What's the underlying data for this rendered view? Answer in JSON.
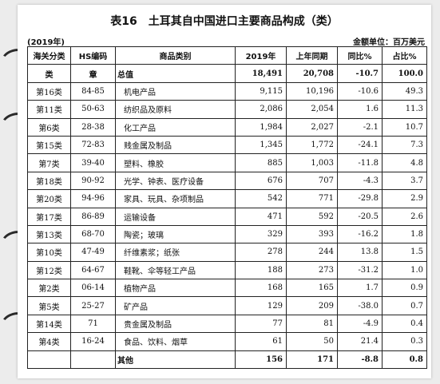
{
  "title": "表16　土耳其自中国进口主要商品构成（类）",
  "year_note": "(2019年)",
  "unit_note": "金额单位：百万美元",
  "headers": [
    "海关分类",
    "HS编码",
    "商品类别",
    "2019年",
    "上年同期",
    "同比%",
    "占比%"
  ],
  "rows": [
    {
      "cls": "类",
      "hs": "章",
      "name": "总值",
      "v2019": "18,491",
      "prev": "20,708",
      "yoy": "-10.7",
      "share": "100.0"
    },
    {
      "cls": "第16类",
      "hs": "84-85",
      "name": "机电产品",
      "v2019": "9,115",
      "prev": "10,196",
      "yoy": "-10.6",
      "share": "49.3"
    },
    {
      "cls": "第11类",
      "hs": "50-63",
      "name": "纺织品及原料",
      "v2019": "2,086",
      "prev": "2,054",
      "yoy": "1.6",
      "share": "11.3"
    },
    {
      "cls": "第6类",
      "hs": "28-38",
      "name": "化工产品",
      "v2019": "1,984",
      "prev": "2,027",
      "yoy": "-2.1",
      "share": "10.7"
    },
    {
      "cls": "第15类",
      "hs": "72-83",
      "name": "贱金属及制品",
      "v2019": "1,345",
      "prev": "1,772",
      "yoy": "-24.1",
      "share": "7.3"
    },
    {
      "cls": "第7类",
      "hs": "39-40",
      "name": "塑料、橡胶",
      "v2019": "885",
      "prev": "1,003",
      "yoy": "-11.8",
      "share": "4.8"
    },
    {
      "cls": "第18类",
      "hs": "90-92",
      "name": "光学、钟表、医疗设备",
      "v2019": "676",
      "prev": "707",
      "yoy": "-4.3",
      "share": "3.7"
    },
    {
      "cls": "第20类",
      "hs": "94-96",
      "name": "家具、玩具、杂项制品",
      "v2019": "542",
      "prev": "771",
      "yoy": "-29.8",
      "share": "2.9"
    },
    {
      "cls": "第17类",
      "hs": "86-89",
      "name": "运输设备",
      "v2019": "471",
      "prev": "592",
      "yoy": "-20.5",
      "share": "2.6"
    },
    {
      "cls": "第13类",
      "hs": "68-70",
      "name": "陶瓷；玻璃",
      "v2019": "329",
      "prev": "393",
      "yoy": "-16.2",
      "share": "1.8"
    },
    {
      "cls": "第10类",
      "hs": "47-49",
      "name": "纤维素浆；纸张",
      "v2019": "278",
      "prev": "244",
      "yoy": "13.8",
      "share": "1.5"
    },
    {
      "cls": "第12类",
      "hs": "64-67",
      "name": "鞋靴、伞等轻工产品",
      "v2019": "188",
      "prev": "273",
      "yoy": "-31.2",
      "share": "1.0"
    },
    {
      "cls": "第2类",
      "hs": "06-14",
      "name": "植物产品",
      "v2019": "168",
      "prev": "165",
      "yoy": "1.7",
      "share": "0.9"
    },
    {
      "cls": "第5类",
      "hs": "25-27",
      "name": "矿产品",
      "v2019": "129",
      "prev": "209",
      "yoy": "-38.0",
      "share": "0.7"
    },
    {
      "cls": "第14类",
      "hs": "71",
      "name": "贵金属及制品",
      "v2019": "77",
      "prev": "81",
      "yoy": "-4.9",
      "share": "0.4"
    },
    {
      "cls": "第4类",
      "hs": "16-24",
      "name": "食品、饮料、烟草",
      "v2019": "61",
      "prev": "50",
      "yoy": "21.4",
      "share": "0.3"
    },
    {
      "cls": "",
      "hs": "",
      "name": "其他",
      "v2019": "156",
      "prev": "171",
      "yoy": "-8.8",
      "share": "0.8"
    }
  ]
}
